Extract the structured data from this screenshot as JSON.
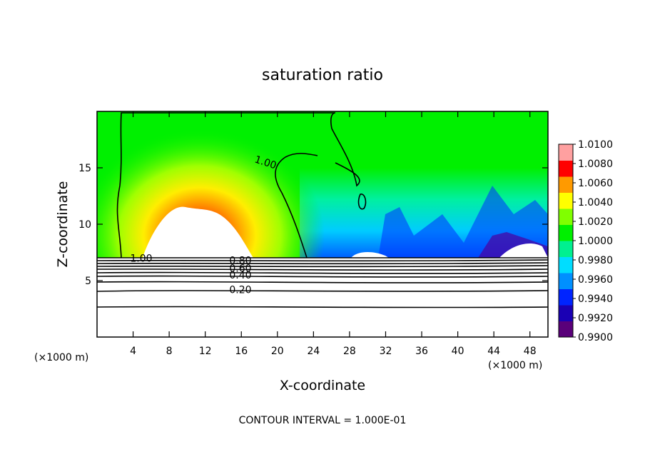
{
  "chart_data": {
    "type": "heatmap",
    "title": "saturation ratio",
    "xlabel": "X-coordinate",
    "ylabel": "Z-coordinate",
    "x_unit": "(×1000 m)",
    "y_unit": "(×1000 m)",
    "xlim": [
      0,
      50
    ],
    "ylim": [
      0,
      20
    ],
    "x_ticks": [
      4,
      8,
      12,
      16,
      20,
      24,
      28,
      32,
      36,
      40,
      44,
      48
    ],
    "y_ticks": [
      5,
      10,
      15
    ],
    "colorbar": {
      "min": 0.99,
      "max": 1.01,
      "ticks": [
        "1.0100",
        "1.0080",
        "1.0060",
        "1.0040",
        "1.0020",
        "1.0000",
        "0.9980",
        "0.9960",
        "0.9940",
        "0.9920",
        "0.9900"
      ],
      "colors": [
        "#5a007a",
        "#1a00b4",
        "#0024ff",
        "#0090ff",
        "#00ddff",
        "#00f090",
        "#00f000",
        "#80ff00",
        "#ffff00",
        "#ff9a00",
        "#ff0000",
        "#ffa0a0"
      ]
    },
    "contour_labels": [
      {
        "text": "1.00",
        "x": 18.7,
        "z": 15.5
      },
      {
        "text": "1.00",
        "x": 4.9,
        "z": 7.0
      },
      {
        "text": "0.80",
        "x": 15.9,
        "z": 6.8
      },
      {
        "text": "0.60",
        "x": 15.9,
        "z": 6.1
      },
      {
        "text": "0.40",
        "x": 15.9,
        "z": 5.5
      },
      {
        "text": "0.20",
        "x": 15.9,
        "z": 4.2
      }
    ],
    "contour_interval_text": "CONTOUR INTERVAL =  1.000E-01"
  }
}
